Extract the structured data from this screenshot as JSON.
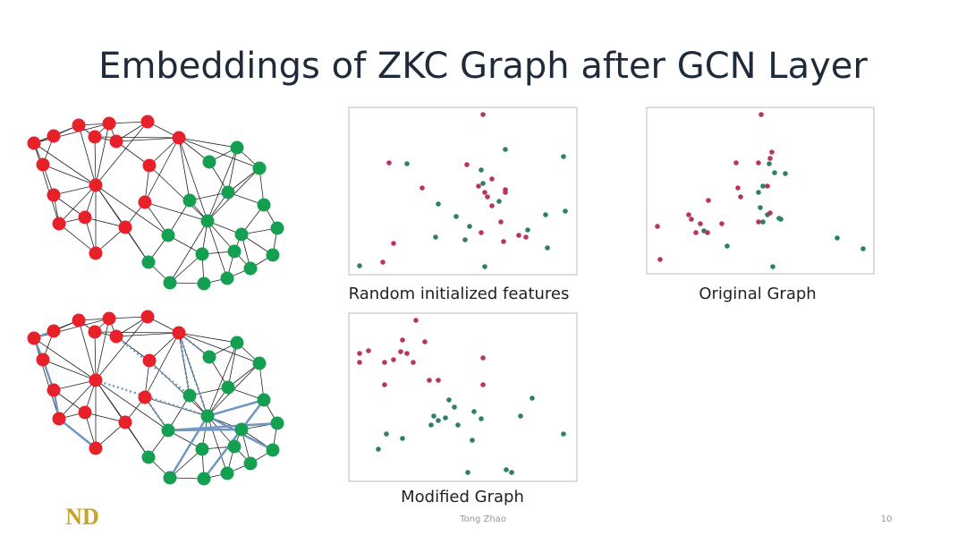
{
  "title": "Embeddings of ZKC Graph after GCN Layer",
  "panels": [
    {
      "caption": "Random initialized features"
    },
    {
      "caption": "Original Graph"
    },
    {
      "caption": "Modified Graph"
    }
  ],
  "footer": {
    "logo": "ND",
    "author": "Tong Zhao",
    "page": "10"
  }
}
